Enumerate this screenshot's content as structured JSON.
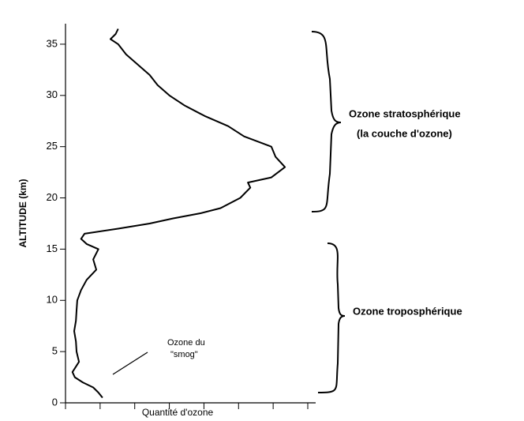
{
  "chart_data": {
    "type": "line",
    "ylabel": "ALTITUDE (km)",
    "xlabel": "Quantité d'ozone",
    "annotations": [
      "Ozone stratosphérique",
      "(la couche d'ozone)",
      "Ozone troposphérique",
      "Ozone du",
      "\"smog\""
    ],
    "color": "#000000",
    "x": [
      1.07,
      0.95,
      0.8,
      0.5,
      0.27,
      0.2,
      0.39,
      0.32,
      0.3,
      0.25,
      0.3,
      0.32,
      0.34,
      0.45,
      0.61,
      0.89,
      0.8,
      0.95,
      0.61,
      0.45,
      0.55,
      1.52,
      2.43,
      3.11,
      3.9,
      4.48,
      5.05,
      5.34,
      5.27,
      5.95,
      6.34,
      6.07,
      5.95,
      5.16,
      4.7,
      4.02,
      3.45,
      3.0,
      2.66,
      2.43,
      2.09,
      1.75,
      1.52,
      1.3,
      1.45,
      1.52
    ],
    "y": [
      0.5,
      1,
      1.5,
      2,
      2.5,
      3,
      4,
      5,
      6,
      7,
      8,
      9,
      10,
      11,
      12,
      13,
      14,
      15,
      15.5,
      16,
      16.5,
      17,
      17.5,
      18,
      18.5,
      19,
      20,
      21,
      21.5,
      22,
      23,
      24,
      25,
      26,
      27,
      28,
      29,
      30,
      31,
      32,
      33,
      34,
      35,
      35.5,
      36,
      36.5
    ],
    "xlim": [
      0,
      7
    ],
    "xticks": [
      0,
      1,
      2,
      3,
      4,
      5,
      6,
      7
    ],
    "ylim": [
      0,
      37
    ],
    "yticks": [
      0,
      5,
      10,
      15,
      20,
      25,
      30,
      35
    ]
  }
}
